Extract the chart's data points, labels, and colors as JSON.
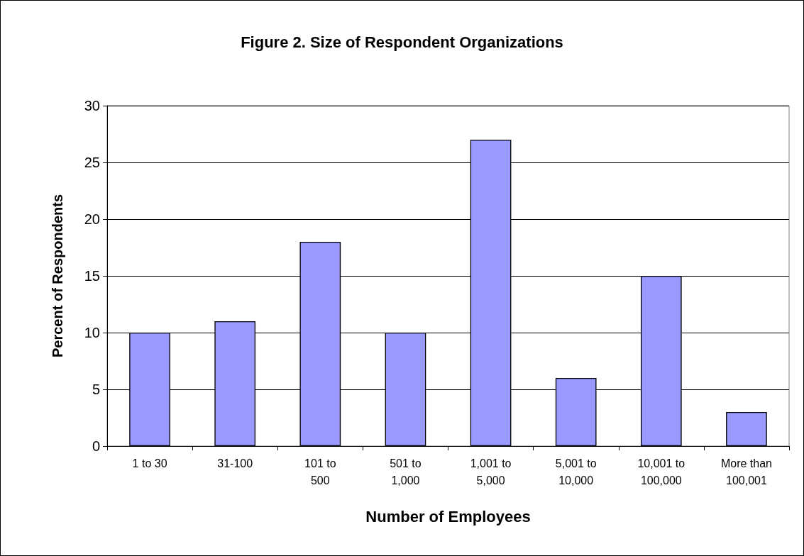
{
  "chart_data": {
    "type": "bar",
    "title": "Figure 2. Size of Respondent Organizations",
    "xlabel": "Number of Employees",
    "ylabel": "Percent of Respondents",
    "categories": [
      "1 to 30",
      "31-100",
      "101 to 500",
      "501 to 1,000",
      "1,001 to 5,000",
      "5,001 to 10,000",
      "10,001 to 100,000",
      "More than 100,001"
    ],
    "values": [
      10,
      11,
      18,
      10,
      27,
      6,
      15,
      3
    ],
    "color": "#9999ff",
    "ylim": [
      0,
      30
    ],
    "yticks": [
      0,
      5,
      10,
      15,
      20,
      25,
      30
    ],
    "grid": "y"
  }
}
